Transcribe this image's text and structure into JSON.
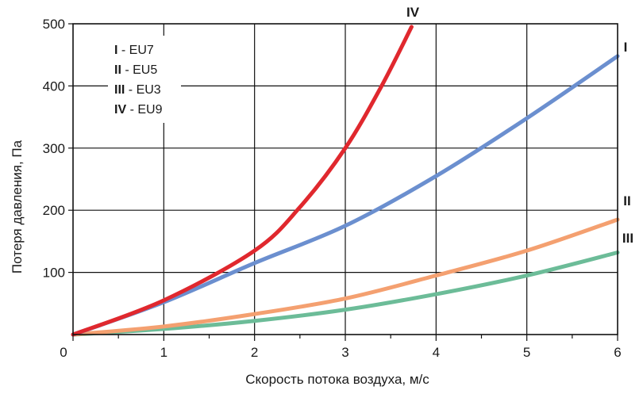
{
  "chart_data": {
    "type": "line",
    "title": "",
    "xlabel": "Скорость потока воздуха, м/с",
    "ylabel": "Потеря давления, Па",
    "xlim": [
      0,
      6
    ],
    "ylim": [
      0,
      500
    ],
    "x_ticks": [
      "0",
      "1",
      "2",
      "3",
      "4",
      "5",
      "6"
    ],
    "y_ticks": [
      "100",
      "200",
      "300",
      "400",
      "500"
    ],
    "grid": true,
    "legend_position": "top-left",
    "legend": [
      {
        "roman": "I",
        "text": " - EU7"
      },
      {
        "roman": "II",
        "text": " - EU5"
      },
      {
        "roman": "III",
        "text": " - EU3"
      },
      {
        "roman": "IV",
        "text": " - EU9"
      }
    ],
    "series": [
      {
        "name": "I",
        "color": "#6b8fcf",
        "points": [
          [
            0,
            0
          ],
          [
            1,
            52
          ],
          [
            2,
            115
          ],
          [
            3,
            175
          ],
          [
            4,
            255
          ],
          [
            5,
            348
          ],
          [
            6,
            448
          ]
        ]
      },
      {
        "name": "II",
        "color": "#f4a070",
        "points": [
          [
            0,
            0
          ],
          [
            1,
            13
          ],
          [
            2,
            33
          ],
          [
            3,
            58
          ],
          [
            4,
            95
          ],
          [
            5,
            135
          ],
          [
            6,
            185
          ]
        ]
      },
      {
        "name": "III",
        "color": "#6cbc98",
        "points": [
          [
            0,
            0
          ],
          [
            1,
            9
          ],
          [
            2,
            22
          ],
          [
            3,
            40
          ],
          [
            4,
            65
          ],
          [
            5,
            95
          ],
          [
            6,
            132
          ]
        ]
      },
      {
        "name": "IV",
        "color": "#e0282e",
        "points": [
          [
            0,
            0
          ],
          [
            1,
            55
          ],
          [
            2,
            135
          ],
          [
            2.5,
            205
          ],
          [
            3,
            300
          ],
          [
            3.4,
            400
          ],
          [
            3.73,
            495
          ]
        ]
      }
    ]
  }
}
